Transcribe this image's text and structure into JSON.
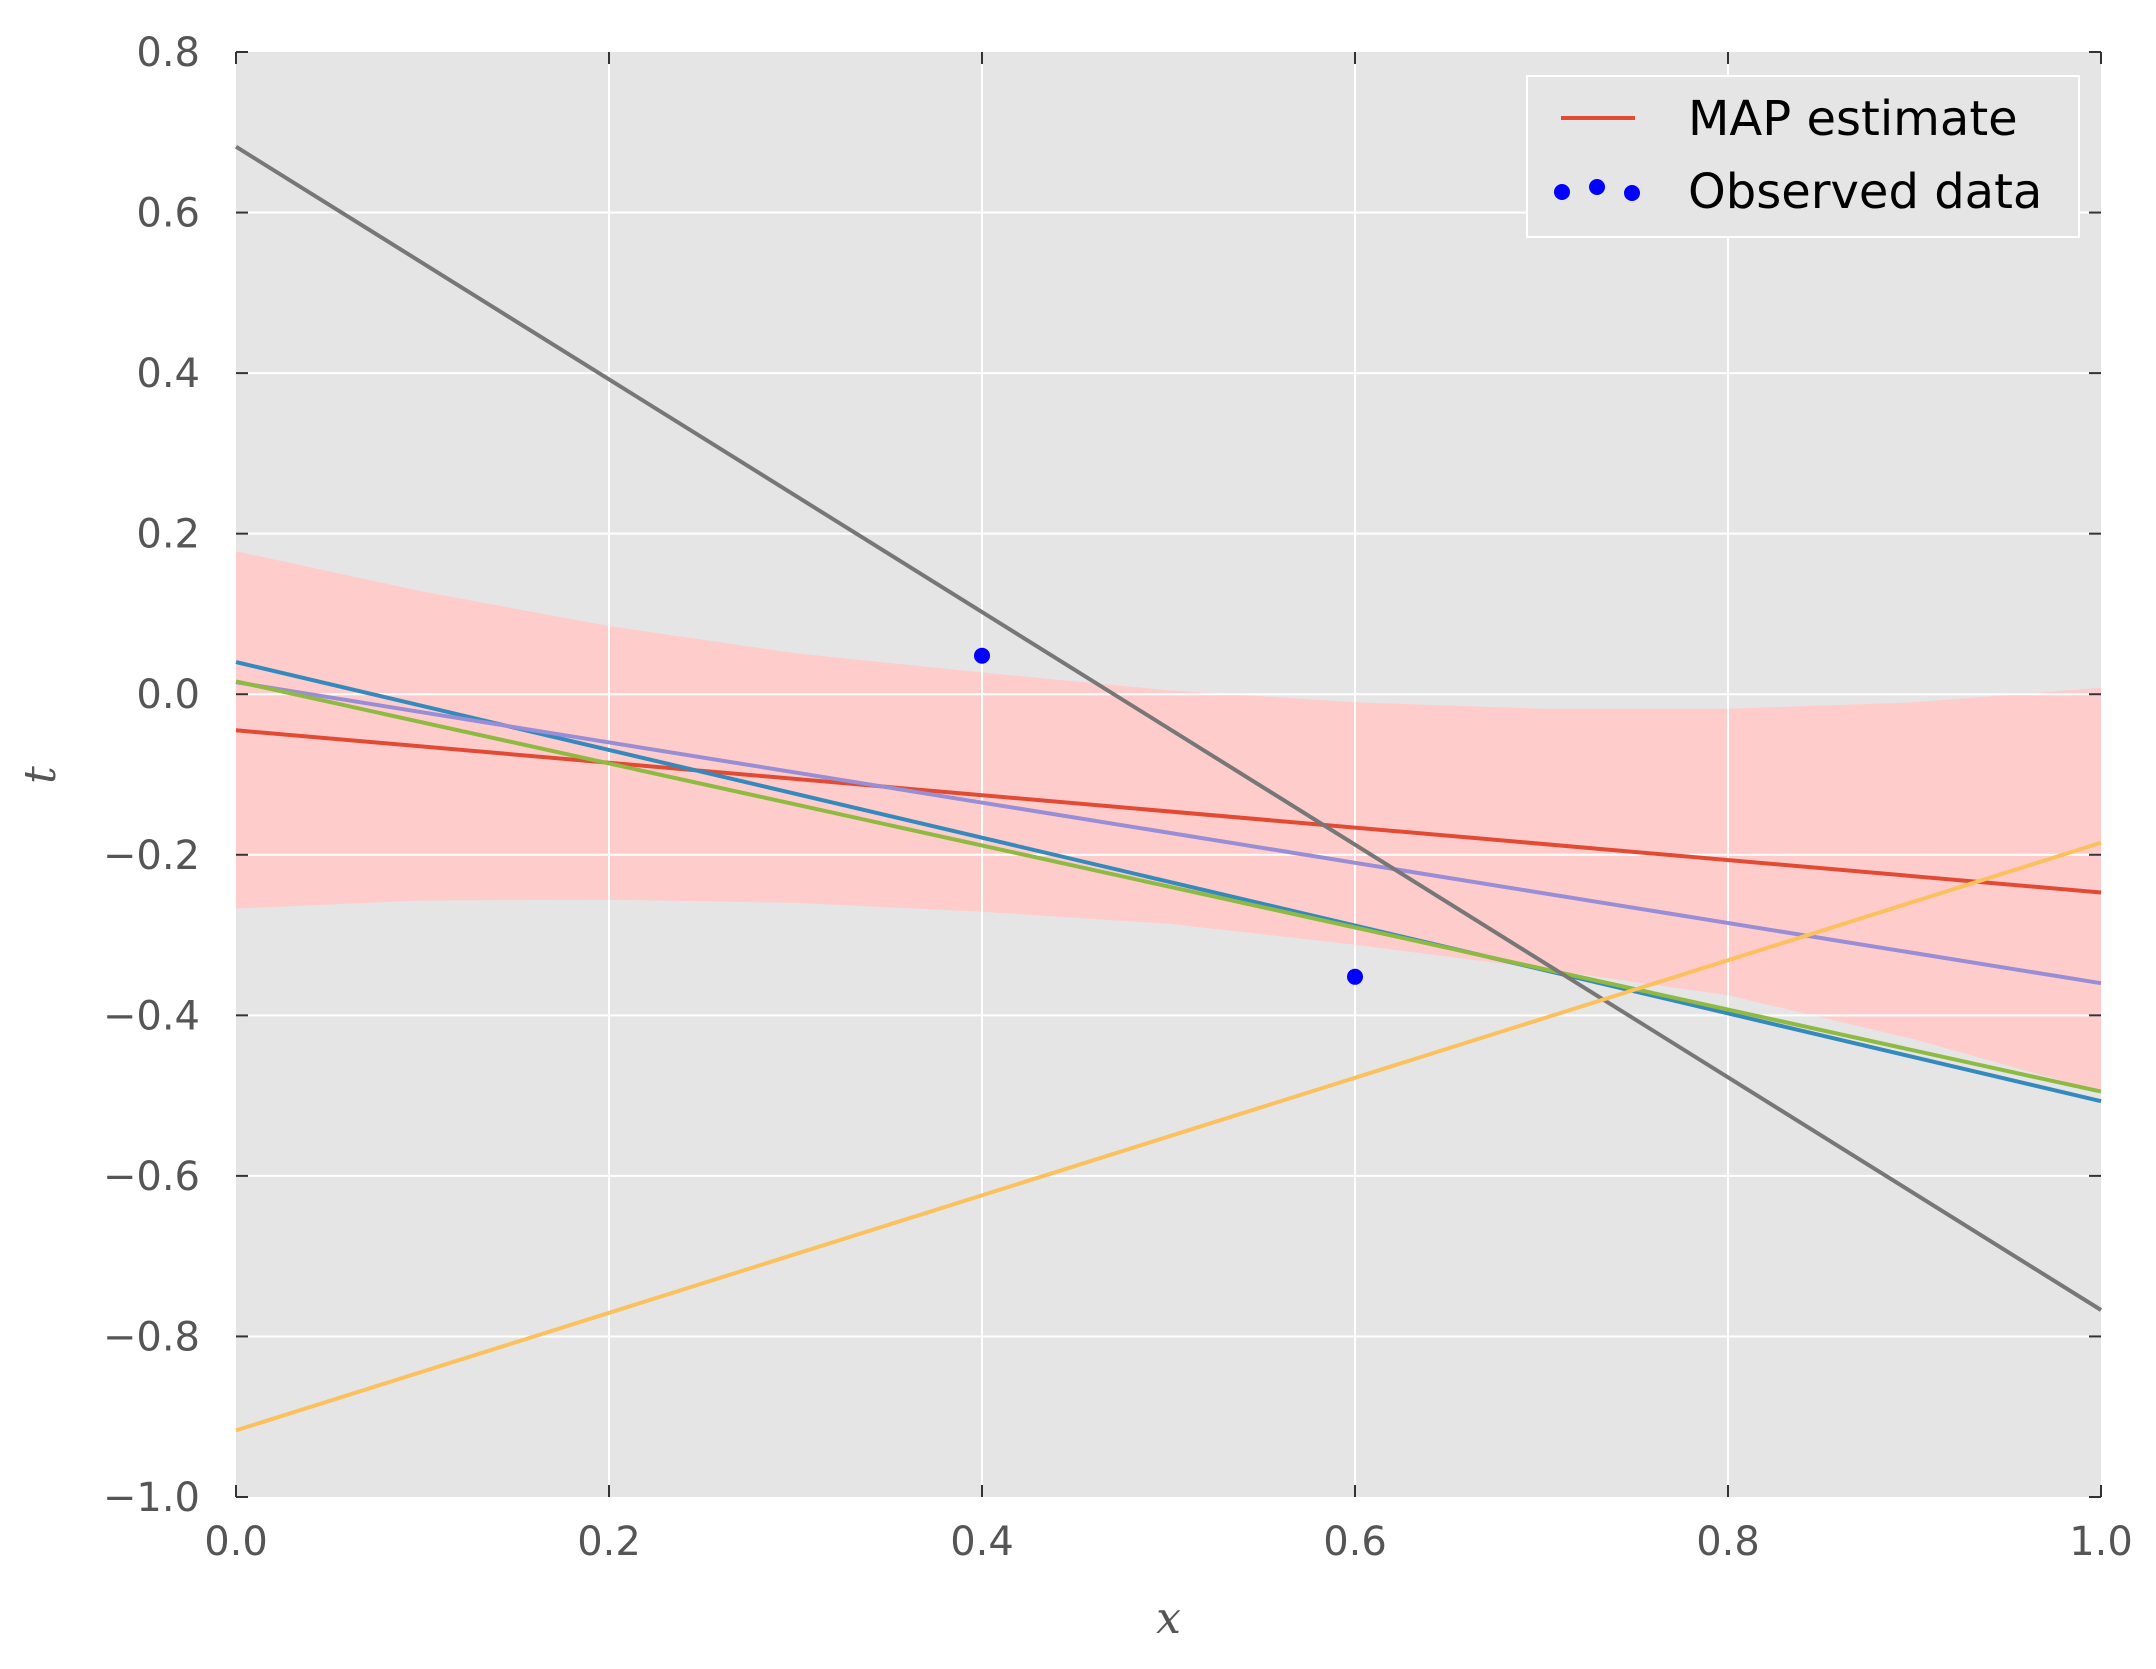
{
  "chart_data": {
    "type": "line",
    "title": "",
    "xlabel": "x",
    "ylabel": "t",
    "xlim": [
      0.0,
      1.0
    ],
    "ylim": [
      -1.0,
      0.8
    ],
    "xticks": [
      "0.0",
      "0.2",
      "0.4",
      "0.6",
      "0.8",
      "1.0"
    ],
    "yticks": [
      "0.8",
      "0.6",
      "0.4",
      "0.2",
      "0.0",
      "−0.2",
      "−0.4",
      "−0.6",
      "−0.8",
      "−1.0"
    ],
    "grid": true,
    "legend_position": "top-right",
    "background_color": "#e5e5e5",
    "band": {
      "color": "#ffcccc",
      "x": [
        0.0,
        0.1,
        0.2,
        0.3,
        0.4,
        0.5,
        0.6,
        0.7,
        0.8,
        0.9,
        1.0
      ],
      "upper": [
        0.178,
        0.128,
        0.085,
        0.051,
        0.027,
        0.005,
        -0.01,
        -0.018,
        -0.018,
        -0.01,
        0.008
      ],
      "lower": [
        -0.267,
        -0.257,
        -0.256,
        -0.26,
        -0.271,
        -0.286,
        -0.312,
        -0.342,
        -0.375,
        -0.43,
        -0.495
      ]
    },
    "series": [
      {
        "name": "MAP estimate",
        "color": "#e24a33",
        "x": [
          0.0,
          1.0
        ],
        "y": [
          -0.045,
          -0.247
        ]
      },
      {
        "color": "#348abd",
        "x": [
          0.0,
          1.0
        ],
        "y": [
          0.04,
          -0.507
        ]
      },
      {
        "color": "#988ed5",
        "x": [
          0.0,
          1.0
        ],
        "y": [
          0.015,
          -0.36
        ]
      },
      {
        "color": "#8eba42",
        "x": [
          0.0,
          1.0
        ],
        "y": [
          0.016,
          -0.495
        ]
      },
      {
        "color": "#777777",
        "x": [
          0.0,
          1.0
        ],
        "y": [
          0.682,
          -0.767
        ]
      },
      {
        "color": "#fbc15e",
        "x": [
          0.0,
          1.0
        ],
        "y": [
          -0.917,
          -0.185
        ]
      }
    ],
    "scatter": {
      "name": "Observed data",
      "color": "#0000ff",
      "points": [
        {
          "x": 0.4,
          "y": 0.048
        },
        {
          "x": 0.6,
          "y": -0.352
        }
      ]
    },
    "legend": [
      {
        "label": "MAP estimate",
        "kind": "line",
        "color": "#e24a33"
      },
      {
        "label": "Observed data",
        "kind": "scatter",
        "color": "#0000ff"
      }
    ]
  }
}
